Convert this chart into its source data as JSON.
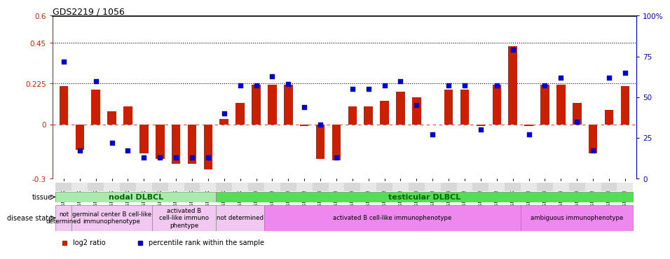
{
  "title": "GDS2219 / 1056",
  "samples": [
    "GSM94786",
    "GSM94794",
    "GSM94779",
    "GSM94789",
    "GSM94791",
    "GSM94793",
    "GSM94795",
    "GSM94782",
    "GSM94792",
    "GSM94796",
    "GSM94797",
    "GSM94799",
    "GSM94800",
    "GSM94811",
    "GSM94802",
    "GSM94804",
    "GSM94805",
    "GSM94806",
    "GSM94808",
    "GSM94809",
    "GSM94810",
    "GSM94812",
    "GSM94814",
    "GSM94815",
    "GSM94817",
    "GSM94818",
    "GSM94819",
    "GSM94820",
    "GSM94798",
    "GSM94801",
    "GSM94803",
    "GSM94807",
    "GSM94813",
    "GSM94816",
    "GSM94821",
    "GSM94822"
  ],
  "log2_ratio": [
    0.21,
    -0.14,
    0.19,
    0.07,
    0.1,
    -0.16,
    -0.19,
    -0.22,
    -0.22,
    -0.25,
    0.03,
    0.12,
    0.22,
    0.22,
    0.22,
    -0.01,
    -0.19,
    -0.2,
    0.1,
    0.1,
    0.13,
    0.18,
    0.15,
    0.0,
    0.19,
    0.19,
    -0.01,
    0.22,
    0.43,
    -0.01,
    0.22,
    0.22,
    0.12,
    -0.16,
    0.08,
    0.21
  ],
  "percentile": [
    72,
    17,
    60,
    22,
    17,
    13,
    13,
    13,
    13,
    13,
    40,
    57,
    57,
    63,
    58,
    44,
    33,
    13,
    55,
    55,
    57,
    60,
    45,
    27,
    57,
    57,
    30,
    57,
    79,
    27,
    57,
    62,
    35,
    17,
    62,
    65
  ],
  "ylim_left": [
    -0.3,
    0.6
  ],
  "ylim_right": [
    0,
    100
  ],
  "yticks_left": [
    -0.3,
    0.0,
    0.225,
    0.45,
    0.6
  ],
  "yticks_right": [
    0,
    25,
    50,
    75,
    100
  ],
  "hlines": [
    0.45,
    0.225
  ],
  "bar_color": "#c82000",
  "dot_color": "#0000cc",
  "zero_line_color": "#c82000",
  "tissue_groups": [
    {
      "label": "nodal DLBCL",
      "start": 0,
      "end": 9,
      "color": "#aaeaaa"
    },
    {
      "label": "testicular DLBCL",
      "start": 10,
      "end": 35,
      "color": "#55dd55"
    }
  ],
  "disease_groups": [
    {
      "label": "not\ndetermined",
      "start": 0,
      "end": 0,
      "color": "#f0c8f0"
    },
    {
      "label": "germinal center B cell-like\nimmunophenotype",
      "start": 1,
      "end": 5,
      "color": "#f0c8f0"
    },
    {
      "label": "activated B\ncell-like immuno\nphentype",
      "start": 6,
      "end": 9,
      "color": "#f0c8f0"
    },
    {
      "label": "not determined",
      "start": 10,
      "end": 12,
      "color": "#f0c8f0"
    },
    {
      "label": "activated B cell-like immunophenotype",
      "start": 13,
      "end": 28,
      "color": "#ee88ee"
    },
    {
      "label": "ambiguous immunophenotype",
      "start": 29,
      "end": 35,
      "color": "#ee88ee"
    }
  ],
  "legend_items": [
    {
      "label": "log2 ratio",
      "color": "#c82000",
      "marker": "s"
    },
    {
      "label": "percentile rank within the sample",
      "color": "#0000cc",
      "marker": "s"
    }
  ]
}
